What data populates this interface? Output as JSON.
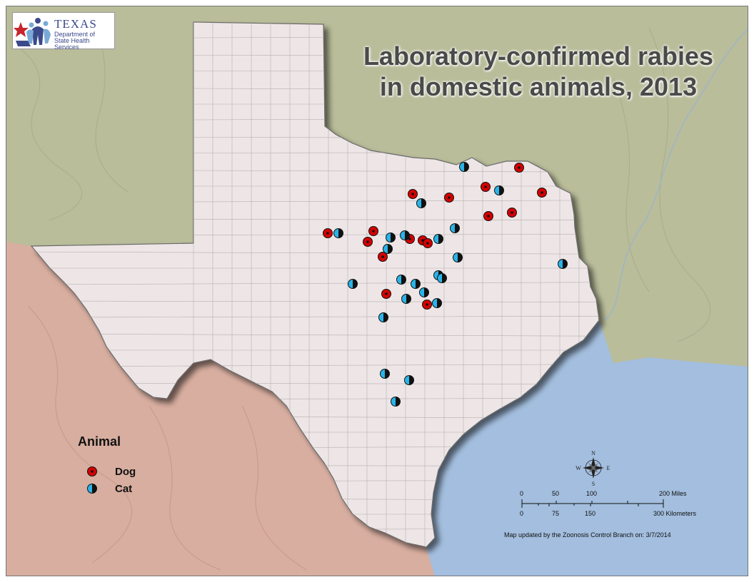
{
  "title_line1": "Laboratory-confirmed rabies",
  "title_line2": "in domestic animals, 2013",
  "logo": {
    "name": "TEXAS",
    "subtitle_line1": "Department of",
    "subtitle_line2": "State Health Services"
  },
  "legend": {
    "title": "Animal",
    "items": [
      {
        "label": "Dog",
        "color": "#d40000",
        "icon": "dog-marker-icon"
      },
      {
        "label": "Cat",
        "color": "#2ab4e8",
        "icon": "cat-marker-icon"
      }
    ]
  },
  "compass": {
    "n": "N",
    "s": "S",
    "e": "E",
    "w": "W"
  },
  "scale_bar": {
    "miles_ticks": [
      "0",
      "50",
      "100",
      "200"
    ],
    "miles_unit": "Miles",
    "km_ticks": [
      "0",
      "75",
      "150",
      "300"
    ],
    "km_unit": "Kilometers"
  },
  "footer_note": "Map updated by the Zoonosis Control Branch on: 3/7/2014",
  "colors": {
    "texas_fill": "#eee6e6",
    "neighbor_north": "#b9bd9a",
    "mexico": "#d8aea0",
    "gulf": "#a3bede"
  }
}
